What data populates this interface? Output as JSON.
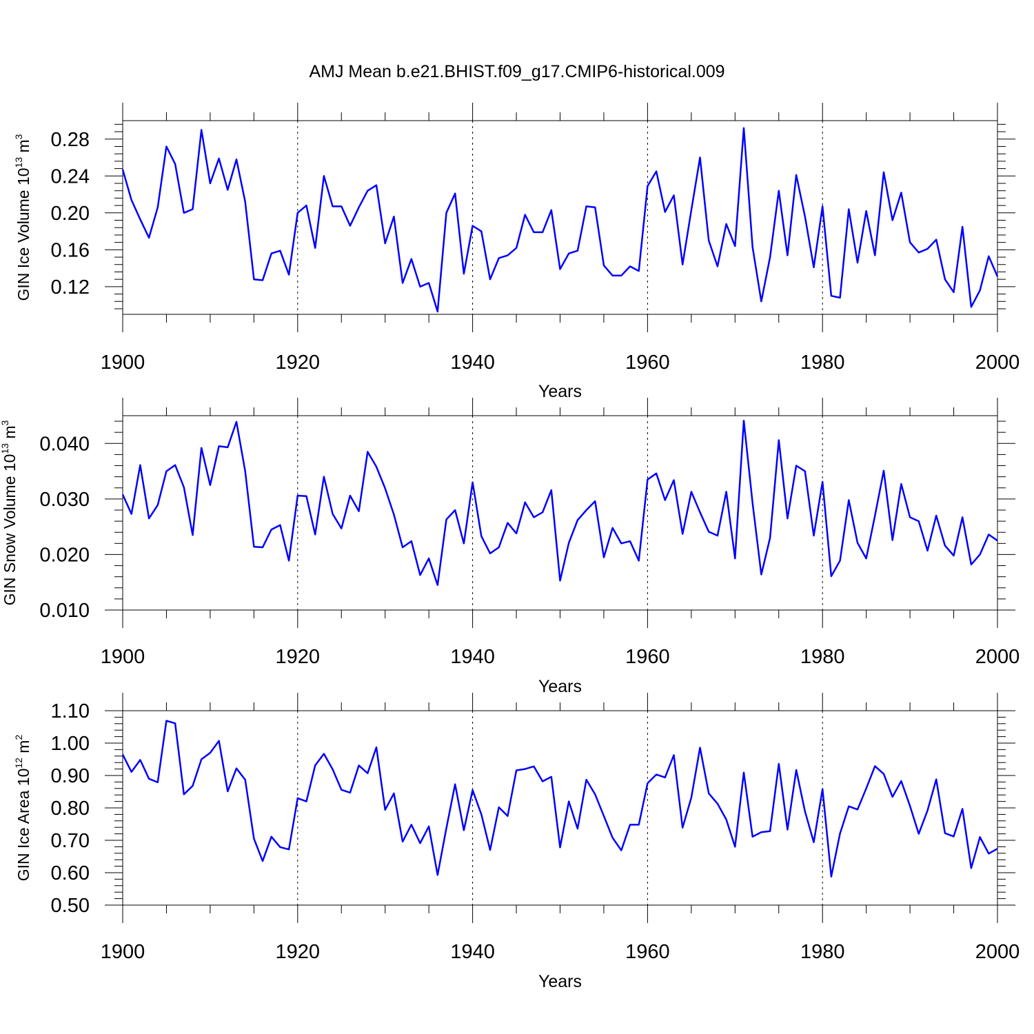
{
  "chart_data": {
    "title": "AMJ Mean b.e21.BHIST.f09_g17.CMIP6-historical.009",
    "type": "line",
    "x_start": 1900,
    "x_step": 1,
    "panels": [
      {
        "type": "line",
        "ylabel": "GIN Ice Volume 10",
        "ylabel_exponent": "13",
        "ylabel_unit": "m",
        "ylabel_unit_exponent": "3",
        "xlabel": "Years",
        "xlim": [
          1900,
          2000
        ],
        "ylim": [
          0.09,
          0.3
        ],
        "xticks": [
          1900,
          1920,
          1940,
          1960,
          1980,
          2000
        ],
        "xtick_labels": [
          "1900",
          "1920",
          "1940",
          "1960",
          "1980",
          "2000"
        ],
        "yticks": [
          0.12,
          0.16,
          0.2,
          0.24,
          0.28
        ],
        "ytick_labels": [
          "0.12",
          "0.16",
          "0.20",
          "0.24",
          "0.28"
        ],
        "color": "#0000ff",
        "values": [
          0.247,
          0.214,
          0.193,
          0.173,
          0.206,
          0.272,
          0.253,
          0.2,
          0.204,
          0.29,
          0.232,
          0.259,
          0.225,
          0.258,
          0.212,
          0.128,
          0.127,
          0.156,
          0.159,
          0.133,
          0.2,
          0.208,
          0.162,
          0.24,
          0.207,
          0.207,
          0.186,
          0.206,
          0.224,
          0.23,
          0.167,
          0.196,
          0.124,
          0.15,
          0.12,
          0.124,
          0.093,
          0.2,
          0.221,
          0.134,
          0.186,
          0.18,
          0.128,
          0.151,
          0.154,
          0.162,
          0.198,
          0.179,
          0.179,
          0.203,
          0.139,
          0.156,
          0.159,
          0.207,
          0.206,
          0.143,
          0.132,
          0.132,
          0.142,
          0.137,
          0.229,
          0.245,
          0.201,
          0.219,
          0.144,
          0.203,
          0.26,
          0.17,
          0.142,
          0.188,
          0.164,
          0.292,
          0.163,
          0.104,
          0.152,
          0.224,
          0.154,
          0.241,
          0.196,
          0.141,
          0.207,
          0.11,
          0.108,
          0.204,
          0.146,
          0.202,
          0.154,
          0.244,
          0.192,
          0.222,
          0.168,
          0.157,
          0.161,
          0.171,
          0.128,
          0.114,
          0.185,
          0.098,
          0.116,
          0.153,
          0.131
        ]
      },
      {
        "type": "line",
        "ylabel": "GIN Snow Volume 10",
        "ylabel_exponent": "13",
        "ylabel_unit": "m",
        "ylabel_unit_exponent": "3",
        "xlabel": "Years",
        "xlim": [
          1900,
          2000
        ],
        "ylim": [
          0.01,
          0.045
        ],
        "xticks": [
          1900,
          1920,
          1940,
          1960,
          1980,
          2000
        ],
        "xtick_labels": [
          "1900",
          "1920",
          "1940",
          "1960",
          "1980",
          "2000"
        ],
        "yticks": [
          0.01,
          0.02,
          0.03,
          0.04
        ],
        "ytick_labels": [
          "0.010",
          "0.020",
          "0.030",
          "0.040"
        ],
        "color": "#0000ff",
        "values": [
          0.0308,
          0.0273,
          0.0361,
          0.0265,
          0.0289,
          0.035,
          0.0361,
          0.0321,
          0.0235,
          0.0392,
          0.0325,
          0.0395,
          0.0393,
          0.0439,
          0.035,
          0.0214,
          0.0213,
          0.0245,
          0.0253,
          0.0189,
          0.0306,
          0.0305,
          0.0236,
          0.034,
          0.0273,
          0.0247,
          0.0306,
          0.0278,
          0.0385,
          0.0358,
          0.0319,
          0.0272,
          0.0213,
          0.0224,
          0.0163,
          0.0193,
          0.0145,
          0.0263,
          0.028,
          0.022,
          0.033,
          0.0233,
          0.0202,
          0.0213,
          0.0257,
          0.0238,
          0.0294,
          0.0267,
          0.0276,
          0.0316,
          0.0153,
          0.0221,
          0.0262,
          0.028,
          0.0296,
          0.0195,
          0.0248,
          0.022,
          0.0224,
          0.0189,
          0.0335,
          0.0346,
          0.0298,
          0.0334,
          0.0237,
          0.0313,
          0.0276,
          0.0241,
          0.0234,
          0.0313,
          0.0193,
          0.0441,
          0.0293,
          0.0164,
          0.023,
          0.0406,
          0.0265,
          0.036,
          0.035,
          0.0234,
          0.0331,
          0.0161,
          0.0189,
          0.0298,
          0.0221,
          0.0193,
          0.027,
          0.0351,
          0.0226,
          0.0327,
          0.0267,
          0.026,
          0.0207,
          0.027,
          0.0216,
          0.0198,
          0.0267,
          0.0182,
          0.02,
          0.0236,
          0.0225
        ]
      },
      {
        "type": "line",
        "ylabel": "GIN Ice Area 10",
        "ylabel_exponent": "12",
        "ylabel_unit": "m",
        "ylabel_unit_exponent": "2",
        "xlabel": "Years",
        "xlim": [
          1900,
          2000
        ],
        "ylim": [
          0.5,
          1.1
        ],
        "xticks": [
          1900,
          1920,
          1940,
          1960,
          1980,
          2000
        ],
        "xtick_labels": [
          "1900",
          "1920",
          "1940",
          "1960",
          "1980",
          "2000"
        ],
        "yticks": [
          0.5,
          0.6,
          0.7,
          0.8,
          0.9,
          1.0,
          1.1
        ],
        "ytick_labels": [
          "0.50",
          "0.60",
          "0.70",
          "0.80",
          "0.90",
          "1.00",
          "1.10"
        ],
        "color": "#0000ff",
        "values": [
          0.965,
          0.911,
          0.948,
          0.89,
          0.879,
          1.069,
          1.061,
          0.842,
          0.868,
          0.95,
          0.97,
          1.007,
          0.851,
          0.922,
          0.887,
          0.705,
          0.636,
          0.711,
          0.679,
          0.672,
          0.83,
          0.82,
          0.931,
          0.967,
          0.919,
          0.856,
          0.847,
          0.931,
          0.907,
          0.987,
          0.794,
          0.845,
          0.696,
          0.748,
          0.691,
          0.743,
          0.593,
          0.737,
          0.873,
          0.731,
          0.855,
          0.78,
          0.67,
          0.802,
          0.775,
          0.916,
          0.92,
          0.928,
          0.882,
          0.896,
          0.678,
          0.82,
          0.736,
          0.887,
          0.842,
          0.775,
          0.708,
          0.669,
          0.748,
          0.748,
          0.876,
          0.903,
          0.894,
          0.963,
          0.739,
          0.832,
          0.986,
          0.845,
          0.813,
          0.764,
          0.68,
          0.909,
          0.711,
          0.725,
          0.728,
          0.936,
          0.733,
          0.917,
          0.789,
          0.694,
          0.858,
          0.588,
          0.721,
          0.805,
          0.795,
          0.86,
          0.929,
          0.905,
          0.834,
          0.883,
          0.806,
          0.72,
          0.792,
          0.888,
          0.722,
          0.712,
          0.797,
          0.614,
          0.71,
          0.659,
          0.674
        ]
      }
    ]
  }
}
